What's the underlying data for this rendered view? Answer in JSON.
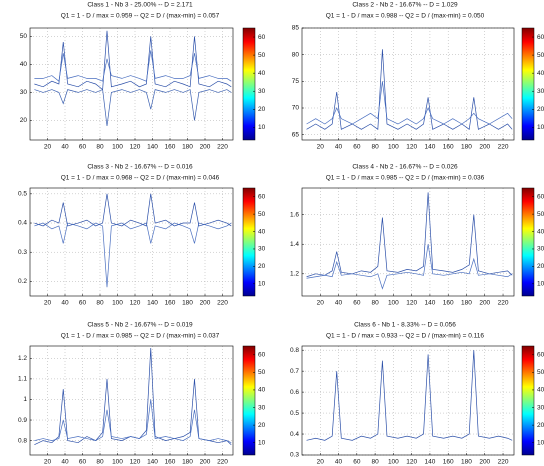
{
  "chart_data": [
    {
      "type": "line",
      "title": "Class 1 - Nb 3 - 25.00% -- D = 2.171",
      "subtitle": "Q1 = 1 - D / max = 0.959 -- Q2 = D / (max-min) = 0.057",
      "x": [
        5,
        15,
        25,
        33,
        38,
        43,
        55,
        65,
        75,
        83,
        88,
        93,
        105,
        115,
        125,
        133,
        138,
        143,
        155,
        165,
        175,
        183,
        188,
        193,
        205,
        215,
        225,
        230
      ],
      "series": [
        {
          "color": "#2b4fa8",
          "values": [
            33,
            32,
            34,
            33,
            48,
            33,
            32,
            34,
            33,
            31,
            52,
            32,
            33,
            34,
            32,
            33,
            50,
            33,
            32,
            34,
            33,
            32,
            50,
            33,
            32,
            34,
            33,
            32
          ]
        },
        {
          "color": "#4a6fc0",
          "values": [
            35,
            35,
            36,
            34,
            44,
            35,
            36,
            35,
            35,
            34,
            42,
            36,
            35,
            36,
            35,
            34,
            45,
            35,
            36,
            35,
            35,
            36,
            44,
            35,
            36,
            35,
            35,
            34
          ]
        },
        {
          "color": "#3a5fb0",
          "values": [
            31,
            30,
            31,
            30,
            26,
            31,
            30,
            31,
            30,
            31,
            18,
            30,
            31,
            30,
            31,
            30,
            24,
            31,
            30,
            31,
            30,
            31,
            20,
            30,
            31,
            30,
            31,
            30
          ]
        }
      ],
      "xlim": [
        0,
        232
      ],
      "xticks": [
        20,
        40,
        60,
        80,
        100,
        120,
        140,
        160,
        180,
        200,
        220
      ],
      "ylim": [
        13,
        53
      ],
      "yticks": [
        20,
        30,
        40,
        50
      ],
      "grid": true,
      "colorbar": {
        "lim": [
          3,
          65
        ],
        "ticks": [
          10,
          20,
          30,
          40,
          50,
          60
        ]
      }
    },
    {
      "type": "line",
      "title": "Class 2 - Nb 2 - 16.67% -- D = 1.029",
      "subtitle": "Q1 = 1 - D / max = 0.988 -- Q2 = D / (max-min) = 0.050",
      "x": [
        5,
        15,
        25,
        33,
        38,
        43,
        55,
        65,
        75,
        83,
        88,
        93,
        105,
        115,
        125,
        133,
        138,
        143,
        155,
        165,
        175,
        183,
        188,
        193,
        205,
        215,
        225,
        230
      ],
      "series": [
        {
          "color": "#2b4fa8",
          "values": [
            66,
            67,
            66,
            67,
            73,
            66,
            67,
            66,
            67,
            66,
            81,
            67,
            66,
            67,
            66,
            67,
            72,
            66,
            67,
            66,
            67,
            66,
            72,
            66,
            67,
            66,
            67,
            66
          ]
        },
        {
          "color": "#4a6fc0",
          "values": [
            67,
            68,
            67,
            68,
            70,
            68,
            67,
            68,
            69,
            68,
            75,
            68,
            67,
            68,
            67,
            68,
            70,
            68,
            67,
            68,
            67,
            68,
            69,
            68,
            67,
            68,
            69,
            68
          ]
        }
      ],
      "xlim": [
        0,
        232
      ],
      "xticks": [
        20,
        40,
        60,
        80,
        100,
        120,
        140,
        160,
        180,
        200,
        220
      ],
      "ylim": [
        64,
        85
      ],
      "yticks": [
        65,
        70,
        75,
        80,
        85
      ],
      "grid": true,
      "colorbar": {
        "lim": [
          3,
          65
        ],
        "ticks": [
          10,
          20,
          30,
          40,
          50,
          60
        ]
      }
    },
    {
      "type": "line",
      "title": "Class 3 - Nb 2 - 16.67% -- D = 0.016",
      "subtitle": "Q1 = 1 - D / max = 0.968 -- Q2 = D / (max-min) = 0.046",
      "x": [
        5,
        15,
        25,
        33,
        38,
        43,
        55,
        65,
        75,
        83,
        88,
        93,
        105,
        115,
        125,
        133,
        138,
        143,
        155,
        165,
        175,
        183,
        188,
        193,
        205,
        215,
        225,
        230
      ],
      "series": [
        {
          "color": "#2b4fa8",
          "values": [
            0.4,
            0.39,
            0.41,
            0.4,
            0.47,
            0.39,
            0.4,
            0.41,
            0.39,
            0.4,
            0.5,
            0.4,
            0.39,
            0.41,
            0.4,
            0.39,
            0.5,
            0.4,
            0.41,
            0.39,
            0.4,
            0.4,
            0.47,
            0.39,
            0.4,
            0.41,
            0.4,
            0.39
          ]
        },
        {
          "color": "#4a6fc0",
          "values": [
            0.39,
            0.4,
            0.38,
            0.39,
            0.33,
            0.4,
            0.39,
            0.38,
            0.4,
            0.39,
            0.18,
            0.39,
            0.4,
            0.38,
            0.39,
            0.4,
            0.33,
            0.39,
            0.38,
            0.4,
            0.39,
            0.38,
            0.33,
            0.4,
            0.39,
            0.38,
            0.39,
            0.4
          ]
        }
      ],
      "xlim": [
        0,
        232
      ],
      "xticks": [
        20,
        40,
        60,
        80,
        100,
        120,
        140,
        160,
        180,
        200,
        220
      ],
      "ylim": [
        0.15,
        0.52
      ],
      "yticks": [
        0.2,
        0.3,
        0.4,
        0.5
      ],
      "grid": true,
      "colorbar": {
        "lim": [
          3,
          65
        ],
        "ticks": [
          10,
          20,
          30,
          40,
          50,
          60
        ]
      }
    },
    {
      "type": "line",
      "title": "Class 4 - Nb 2 - 16.67% -- D = 0.026",
      "subtitle": "Q1 = 1 - D / max = 0.985 -- Q2 = D / (max-min) = 0.036",
      "x": [
        5,
        15,
        25,
        33,
        38,
        43,
        55,
        65,
        75,
        83,
        88,
        93,
        105,
        115,
        125,
        133,
        138,
        143,
        155,
        165,
        175,
        183,
        188,
        193,
        205,
        215,
        225,
        230
      ],
      "series": [
        {
          "color": "#2b4fa8",
          "values": [
            1.18,
            1.2,
            1.19,
            1.22,
            1.35,
            1.21,
            1.2,
            1.22,
            1.21,
            1.25,
            1.58,
            1.22,
            1.21,
            1.23,
            1.22,
            1.25,
            1.75,
            1.23,
            1.22,
            1.21,
            1.23,
            1.26,
            1.6,
            1.22,
            1.2,
            1.21,
            1.22,
            1.19
          ]
        },
        {
          "color": "#4a6fc0",
          "values": [
            1.17,
            1.18,
            1.19,
            1.18,
            1.28,
            1.19,
            1.2,
            1.19,
            1.18,
            1.2,
            1.1,
            1.19,
            1.2,
            1.21,
            1.2,
            1.19,
            1.4,
            1.2,
            1.19,
            1.2,
            1.21,
            1.2,
            1.3,
            1.19,
            1.2,
            1.19,
            1.18,
            1.2
          ]
        }
      ],
      "xlim": [
        0,
        232
      ],
      "xticks": [
        20,
        40,
        60,
        80,
        100,
        120,
        140,
        160,
        180,
        200,
        220
      ],
      "ylim": [
        1.05,
        1.78
      ],
      "yticks": [
        1.2,
        1.4,
        1.6
      ],
      "grid": true,
      "colorbar": {
        "lim": [
          3,
          65
        ],
        "ticks": [
          10,
          20,
          30,
          40,
          50,
          60
        ]
      }
    },
    {
      "type": "line",
      "title": "Class 5 - Nb 2 - 16.67% -- D = 0.019",
      "subtitle": "Q1 = 1 - D / max = 0.985 -- Q2 = D / (max-min) = 0.037",
      "x": [
        5,
        15,
        25,
        33,
        38,
        43,
        55,
        65,
        75,
        83,
        88,
        93,
        105,
        115,
        125,
        133,
        138,
        143,
        155,
        165,
        175,
        183,
        188,
        193,
        205,
        215,
        225,
        230
      ],
      "series": [
        {
          "color": "#2b4fa8",
          "values": [
            0.78,
            0.8,
            0.79,
            0.82,
            1.05,
            0.8,
            0.79,
            0.82,
            0.8,
            0.84,
            1.1,
            0.81,
            0.8,
            0.82,
            0.81,
            0.85,
            1.25,
            0.82,
            0.8,
            0.81,
            0.82,
            0.84,
            1.1,
            0.81,
            0.8,
            0.79,
            0.8,
            0.78
          ]
        },
        {
          "color": "#4a6fc0",
          "values": [
            0.8,
            0.81,
            0.8,
            0.81,
            0.9,
            0.81,
            0.82,
            0.81,
            0.8,
            0.82,
            0.95,
            0.82,
            0.81,
            0.82,
            0.81,
            0.83,
            1.0,
            0.81,
            0.82,
            0.81,
            0.8,
            0.82,
            0.95,
            0.81,
            0.8,
            0.81,
            0.8,
            0.79
          ]
        }
      ],
      "xlim": [
        0,
        232
      ],
      "xticks": [
        20,
        40,
        60,
        80,
        100,
        120,
        140,
        160,
        180,
        200,
        220
      ],
      "ylim": [
        0.73,
        1.26
      ],
      "yticks": [
        0.8,
        0.9,
        1,
        1.1,
        1.2
      ],
      "grid": true,
      "colorbar": {
        "lim": [
          3,
          65
        ],
        "ticks": [
          10,
          20,
          30,
          40,
          50,
          60
        ]
      }
    },
    {
      "type": "line",
      "title": "Class 6 - Nb 1 - 8.33% -- D = 0.056",
      "subtitle": "Q1 = 1 - D / max = 0.933 -- Q2 = D / (max-min) = 0.116",
      "x": [
        5,
        15,
        25,
        33,
        38,
        43,
        55,
        65,
        75,
        83,
        88,
        93,
        105,
        115,
        125,
        133,
        138,
        143,
        155,
        165,
        175,
        183,
        188,
        193,
        205,
        215,
        225,
        230
      ],
      "series": [
        {
          "color": "#2b4fa8",
          "values": [
            0.37,
            0.38,
            0.37,
            0.39,
            0.7,
            0.38,
            0.37,
            0.39,
            0.38,
            0.4,
            0.75,
            0.39,
            0.38,
            0.39,
            0.38,
            0.4,
            0.78,
            0.39,
            0.38,
            0.39,
            0.38,
            0.4,
            0.8,
            0.39,
            0.38,
            0.39,
            0.38,
            0.37
          ]
        }
      ],
      "xlim": [
        0,
        232
      ],
      "xticks": [
        20,
        40,
        60,
        80,
        100,
        120,
        140,
        160,
        180,
        200,
        220
      ],
      "ylim": [
        0.3,
        0.82
      ],
      "yticks": [
        0.3,
        0.4,
        0.5,
        0.6,
        0.7,
        0.8
      ],
      "grid": true,
      "colorbar": {
        "lim": [
          3,
          65
        ],
        "ticks": [
          10,
          20,
          30,
          40,
          50,
          60
        ]
      }
    }
  ]
}
